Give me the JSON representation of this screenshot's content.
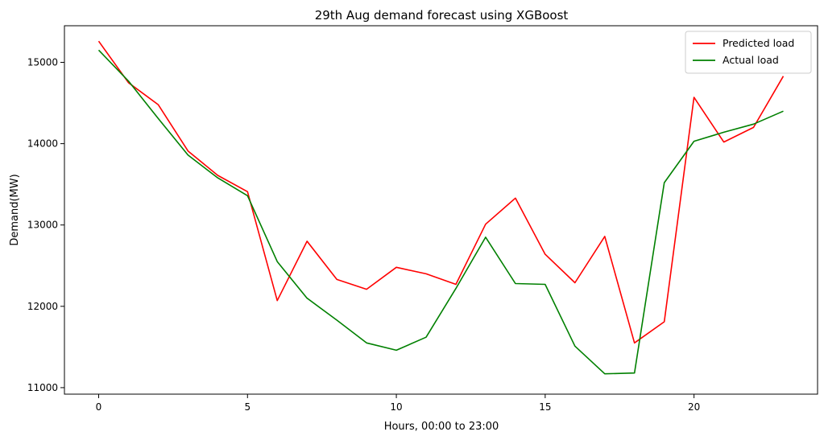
{
  "chart_data": {
    "type": "line",
    "title": "29th Aug demand forecast using XGBoost",
    "xlabel": "Hours, 00:00 to 23:00",
    "ylabel": "Demand(MW)",
    "xlim": [
      -1.15,
      24.15
    ],
    "ylim": [
      10920,
      15450
    ],
    "xticks": [
      0,
      5,
      10,
      15,
      20
    ],
    "yticks": [
      11000,
      12000,
      13000,
      14000,
      15000
    ],
    "grid": false,
    "legend_position": "top-right",
    "x": [
      0,
      1,
      2,
      3,
      4,
      5,
      6,
      7,
      8,
      9,
      10,
      11,
      12,
      13,
      14,
      15,
      16,
      17,
      18,
      19,
      20,
      21,
      22,
      23
    ],
    "series": [
      {
        "name": "Predicted load",
        "color": "#ff0000",
        "values": [
          15260,
          14750,
          14480,
          13910,
          13610,
          13410,
          12070,
          12800,
          12330,
          12210,
          12480,
          12400,
          12270,
          13010,
          13330,
          12640,
          12290,
          12860,
          11550,
          11810,
          14570,
          14020,
          14200,
          14830
        ]
      },
      {
        "name": "Actual load",
        "color": "#008000",
        "values": [
          15150,
          14770,
          14310,
          13860,
          13580,
          13360,
          12550,
          12100,
          11830,
          11550,
          11460,
          11620,
          12220,
          12850,
          12280,
          12270,
          11510,
          11170,
          11180,
          13520,
          14030,
          14140,
          14240,
          14400
        ]
      }
    ]
  }
}
